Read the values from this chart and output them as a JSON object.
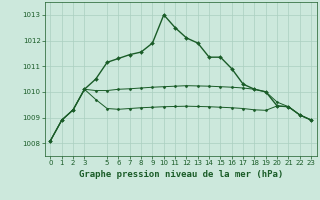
{
  "background_color": "#cce8dc",
  "grid_color": "#aacfc0",
  "line_color": "#1a5c28",
  "title": "Graphe pression niveau de la mer (hPa)",
  "xlim": [
    -0.5,
    23.5
  ],
  "ylim": [
    1007.5,
    1013.5
  ],
  "yticks": [
    1008,
    1009,
    1010,
    1011,
    1012,
    1013
  ],
  "xticks": [
    0,
    1,
    2,
    3,
    5,
    6,
    7,
    8,
    9,
    10,
    11,
    12,
    13,
    14,
    15,
    16,
    17,
    18,
    19,
    20,
    21,
    22,
    23
  ],
  "xtick_labels": [
    "0",
    "1",
    "2",
    "3",
    "5",
    "6",
    "7",
    "8",
    "9",
    "10",
    "11",
    "12",
    "13",
    "14",
    "15",
    "16",
    "17",
    "18",
    "19",
    "20",
    "21",
    "22",
    "23"
  ],
  "series": [
    {
      "x": [
        0,
        1,
        2,
        3,
        4,
        5,
        6,
        7,
        8,
        9,
        10,
        11,
        12,
        13,
        14,
        15,
        16,
        17,
        18,
        19,
        20,
        21,
        22,
        23
      ],
      "y": [
        1008.1,
        1008.9,
        1009.3,
        1010.1,
        1010.5,
        1011.15,
        1011.3,
        1011.45,
        1011.55,
        1011.9,
        1013.0,
        1012.5,
        1012.1,
        1011.9,
        1011.35,
        1011.35,
        1010.9,
        1010.3,
        1010.1,
        1010.0,
        1009.45,
        1009.42,
        1009.1,
        1008.9
      ],
      "marker": "D",
      "markersize": 2.0,
      "linewidth": 1.0
    },
    {
      "x": [
        0,
        1,
        2,
        3,
        4,
        5,
        6,
        7,
        8,
        9,
        10,
        11,
        12,
        13,
        14,
        15,
        16,
        17,
        18,
        19,
        20,
        21,
        22,
        23
      ],
      "y": [
        1008.1,
        1008.9,
        1009.3,
        1010.1,
        1010.05,
        1010.05,
        1010.1,
        1010.12,
        1010.15,
        1010.18,
        1010.2,
        1010.22,
        1010.24,
        1010.23,
        1010.22,
        1010.2,
        1010.18,
        1010.15,
        1010.1,
        1010.0,
        1009.6,
        1009.42,
        1009.1,
        1008.9
      ],
      "marker": "D",
      "markersize": 1.5,
      "linewidth": 0.7
    },
    {
      "x": [
        0,
        1,
        2,
        3,
        4,
        5,
        6,
        7,
        8,
        9,
        10,
        11,
        12,
        13,
        14,
        15,
        16,
        17,
        18,
        19,
        20,
        21,
        22,
        23
      ],
      "y": [
        1008.1,
        1008.9,
        1009.3,
        1010.1,
        1009.7,
        1009.35,
        1009.32,
        1009.35,
        1009.38,
        1009.4,
        1009.42,
        1009.43,
        1009.44,
        1009.43,
        1009.42,
        1009.4,
        1009.38,
        1009.35,
        1009.3,
        1009.28,
        1009.45,
        1009.42,
        1009.1,
        1008.9
      ],
      "marker": "D",
      "markersize": 1.5,
      "linewidth": 0.7
    }
  ],
  "title_fontsize": 6.5,
  "tick_fontsize": 5.0,
  "title_color": "#1a5c28",
  "tick_color": "#1a5c28",
  "axis_color": "#1a5c28"
}
